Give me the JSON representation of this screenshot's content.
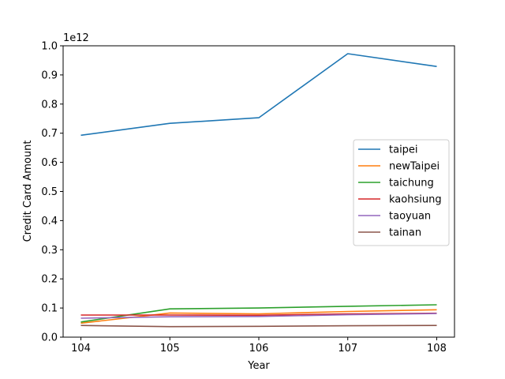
{
  "chart_data": {
    "type": "line",
    "title": "",
    "xlabel": "Year",
    "ylabel": "Credit Card Amount",
    "offset_label": "1e12",
    "x": [
      104,
      105,
      106,
      107,
      108
    ],
    "x_ticks": [
      "104",
      "105",
      "106",
      "107",
      "108"
    ],
    "y_ticks": [
      "0.0",
      "0.1",
      "0.2",
      "0.3",
      "0.4",
      "0.5",
      "0.6",
      "0.7",
      "0.8",
      "0.9",
      "1.0"
    ],
    "xlim": [
      103.8,
      108.2
    ],
    "ylim": [
      0.0,
      1.0
    ],
    "y_scale": "1e12",
    "grid": false,
    "legend_position": "center-right",
    "series": [
      {
        "name": "taipei",
        "color": "#1f77b4",
        "values": [
          0.693,
          0.734,
          0.753,
          0.973,
          0.929
        ]
      },
      {
        "name": "newTaipei",
        "color": "#ff7f0e",
        "values": [
          0.048,
          0.083,
          0.08,
          0.088,
          0.094
        ]
      },
      {
        "name": "taichung",
        "color": "#2ca02c",
        "values": [
          0.052,
          0.097,
          0.1,
          0.106,
          0.111
        ]
      },
      {
        "name": "kaohsiung",
        "color": "#d62728",
        "values": [
          0.076,
          0.076,
          0.075,
          0.08,
          0.082
        ]
      },
      {
        "name": "taoyuan",
        "color": "#9467bd",
        "values": [
          0.065,
          0.07,
          0.071,
          0.077,
          0.081
        ]
      },
      {
        "name": "tainan",
        "color": "#8c564b",
        "values": [
          0.04,
          0.036,
          0.037,
          0.039,
          0.04
        ]
      }
    ]
  }
}
